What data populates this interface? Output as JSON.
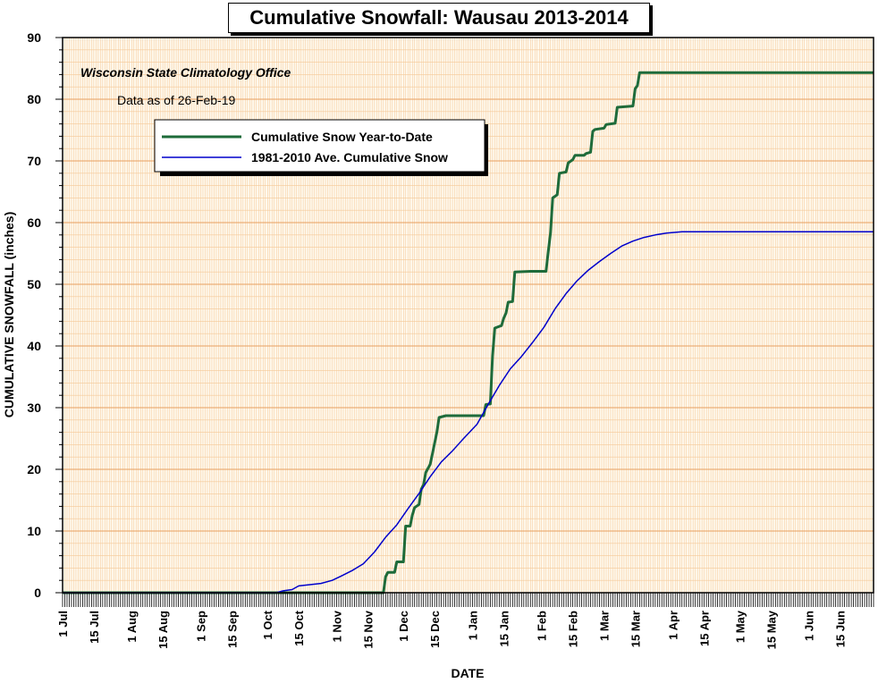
{
  "chart_data": {
    "type": "line",
    "title": "Cumulative Snowfall: Wausau 2013-2014",
    "source": "Wisconsin State Climatology Office",
    "data_date": "Data as of 26-Feb-19",
    "xlabel": "DATE",
    "ylabel": "CUMULATIVE SNOWFALL (inches)",
    "ylim": [
      0,
      90
    ],
    "yticks": [
      0,
      10,
      20,
      30,
      40,
      50,
      60,
      70,
      80,
      90
    ],
    "xlim": [
      "2013-07-01",
      "2014-06-30"
    ],
    "xticks": [
      {
        "date": "2013-07-01",
        "label": "1 Jul"
      },
      {
        "date": "2013-07-15",
        "label": "15 Jul"
      },
      {
        "date": "2013-08-01",
        "label": "1 Aug"
      },
      {
        "date": "2013-08-15",
        "label": "15 Aug"
      },
      {
        "date": "2013-09-01",
        "label": "1 Sep"
      },
      {
        "date": "2013-09-15",
        "label": "15 Sep"
      },
      {
        "date": "2013-10-01",
        "label": "1 Oct"
      },
      {
        "date": "2013-10-15",
        "label": "15 Oct"
      },
      {
        "date": "2013-11-01",
        "label": "1 Nov"
      },
      {
        "date": "2013-11-15",
        "label": "15 Nov"
      },
      {
        "date": "2013-12-01",
        "label": "1 Dec"
      },
      {
        "date": "2013-12-15",
        "label": "15 Dec"
      },
      {
        "date": "2014-01-01",
        "label": "1 Jan"
      },
      {
        "date": "2014-01-15",
        "label": "15 Jan"
      },
      {
        "date": "2014-02-01",
        "label": "1 Feb"
      },
      {
        "date": "2014-02-15",
        "label": "15 Feb"
      },
      {
        "date": "2014-03-01",
        "label": "1 Mar"
      },
      {
        "date": "2014-03-15",
        "label": "15 Mar"
      },
      {
        "date": "2014-04-01",
        "label": "1 Apr"
      },
      {
        "date": "2014-04-15",
        "label": "15 Apr"
      },
      {
        "date": "2014-05-01",
        "label": "1 May"
      },
      {
        "date": "2014-05-15",
        "label": "15 May"
      },
      {
        "date": "2014-06-01",
        "label": "1 Jun"
      },
      {
        "date": "2014-06-15",
        "label": "15 Jun"
      }
    ],
    "grid": true,
    "legend_position": "upper-left",
    "series": [
      {
        "name": "Cumulative Snow Year-to-Date",
        "color": "#1e6b3a",
        "step": true,
        "points": [
          [
            "2013-07-01",
            0
          ],
          [
            "2013-11-22",
            0
          ],
          [
            "2013-11-23",
            2.6
          ],
          [
            "2013-11-24",
            3.3
          ],
          [
            "2013-11-27",
            3.3
          ],
          [
            "2013-11-28",
            5.0
          ],
          [
            "2013-12-01",
            5.0
          ],
          [
            "2013-12-02",
            10.8
          ],
          [
            "2013-12-04",
            10.8
          ],
          [
            "2013-12-05",
            12.6
          ],
          [
            "2013-12-06",
            13.8
          ],
          [
            "2013-12-08",
            14.3
          ],
          [
            "2013-12-09",
            16.8
          ],
          [
            "2013-12-10",
            17.5
          ],
          [
            "2013-12-11",
            19.5
          ],
          [
            "2013-12-13",
            20.8
          ],
          [
            "2013-12-14",
            22.5
          ],
          [
            "2013-12-16",
            26.0
          ],
          [
            "2013-12-17",
            28.4
          ],
          [
            "2013-12-20",
            28.7
          ],
          [
            "2014-01-06",
            28.7
          ],
          [
            "2014-01-07",
            30.5
          ],
          [
            "2014-01-09",
            30.6
          ],
          [
            "2014-01-10",
            38.4
          ],
          [
            "2014-01-11",
            42.9
          ],
          [
            "2014-01-14",
            43.3
          ],
          [
            "2014-01-15",
            44.5
          ],
          [
            "2014-01-16",
            45.3
          ],
          [
            "2014-01-17",
            47.1
          ],
          [
            "2014-01-19",
            47.2
          ],
          [
            "2014-01-20",
            52.0
          ],
          [
            "2014-01-27",
            52.1
          ],
          [
            "2014-02-03",
            52.1
          ],
          [
            "2014-02-04",
            55.3
          ],
          [
            "2014-02-05",
            58.3
          ],
          [
            "2014-02-06",
            64.0
          ],
          [
            "2014-02-08",
            64.5
          ],
          [
            "2014-02-09",
            68.0
          ],
          [
            "2014-02-12",
            68.2
          ],
          [
            "2014-02-13",
            69.7
          ],
          [
            "2014-02-15",
            70.2
          ],
          [
            "2014-02-16",
            70.9
          ],
          [
            "2014-02-20",
            70.9
          ],
          [
            "2014-02-21",
            71.2
          ],
          [
            "2014-02-23",
            71.4
          ],
          [
            "2014-02-24",
            74.8
          ],
          [
            "2014-02-25",
            75.1
          ],
          [
            "2014-03-01",
            75.3
          ],
          [
            "2014-03-02",
            75.9
          ],
          [
            "2014-03-06",
            76.1
          ],
          [
            "2014-03-07",
            78.7
          ],
          [
            "2014-03-14",
            78.9
          ],
          [
            "2014-03-15",
            81.7
          ],
          [
            "2014-03-16",
            82.2
          ],
          [
            "2014-03-17",
            84.3
          ],
          [
            "2014-06-30",
            84.3
          ]
        ]
      },
      {
        "name": "1981-2010 Ave. Cumulative Snow",
        "color": "#0000cc",
        "points": [
          [
            "2013-07-01",
            0
          ],
          [
            "2013-10-05",
            0
          ],
          [
            "2013-10-08",
            0.3
          ],
          [
            "2013-10-12",
            0.5
          ],
          [
            "2013-10-15",
            1.1
          ],
          [
            "2013-10-20",
            1.3
          ],
          [
            "2013-10-25",
            1.5
          ],
          [
            "2013-10-30",
            2.0
          ],
          [
            "2013-11-03",
            2.7
          ],
          [
            "2013-11-08",
            3.6
          ],
          [
            "2013-11-13",
            4.7
          ],
          [
            "2013-11-18",
            6.6
          ],
          [
            "2013-11-23",
            9.0
          ],
          [
            "2013-11-28",
            11.0
          ],
          [
            "2013-12-03",
            13.6
          ],
          [
            "2013-12-08",
            16.1
          ],
          [
            "2013-12-13",
            18.8
          ],
          [
            "2013-12-18",
            21.2
          ],
          [
            "2013-12-23",
            23.0
          ],
          [
            "2013-12-28",
            25.0
          ],
          [
            "2014-01-03",
            27.3
          ],
          [
            "2014-01-08",
            30.5
          ],
          [
            "2014-01-13",
            33.6
          ],
          [
            "2014-01-18",
            36.3
          ],
          [
            "2014-01-23",
            38.3
          ],
          [
            "2014-01-28",
            40.6
          ],
          [
            "2014-02-02",
            43.0
          ],
          [
            "2014-02-07",
            46.0
          ],
          [
            "2014-02-12",
            48.5
          ],
          [
            "2014-02-17",
            50.6
          ],
          [
            "2014-02-22",
            52.3
          ],
          [
            "2014-02-27",
            53.7
          ],
          [
            "2014-03-04",
            55.0
          ],
          [
            "2014-03-09",
            56.2
          ],
          [
            "2014-03-14",
            57.0
          ],
          [
            "2014-03-19",
            57.6
          ],
          [
            "2014-03-24",
            58.0
          ],
          [
            "2014-03-29",
            58.3
          ],
          [
            "2014-04-05",
            58.5
          ],
          [
            "2014-06-30",
            58.5
          ]
        ]
      }
    ],
    "colors": {
      "plot_background": "#fef8ec",
      "minor_grid": "#f5c896",
      "major_grid": "#e8a060",
      "frame": "#000000"
    }
  }
}
